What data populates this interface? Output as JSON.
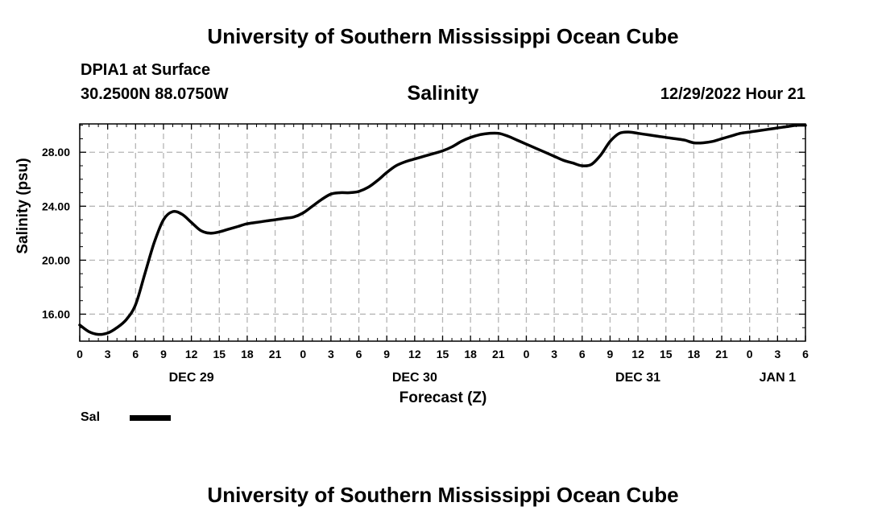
{
  "page": {
    "title_top": "University of Southern Mississippi Ocean Cube",
    "title_bottom": "University of Southern Mississippi Ocean Cube",
    "station": "DPIA1 at Surface",
    "coords": "30.2500N  88.0750W",
    "datetime": "12/29/2022 Hour 21"
  },
  "chart_data": {
    "type": "line",
    "title": "Salinity",
    "xlabel": "Forecast (Z)",
    "ylabel": "Salinity (psu)",
    "x_unit": "hours since 00Z Dec 29",
    "xlim": [
      0,
      78
    ],
    "ylim": [
      14.0,
      30.1
    ],
    "yticks": [
      16,
      20,
      24,
      28
    ],
    "ytick_labels": [
      "16.00",
      "20.00",
      "24.00",
      "28.00"
    ],
    "xtick_labels": [
      "0",
      "3",
      "6",
      "9",
      "12",
      "15",
      "18",
      "21",
      "0",
      "3",
      "6",
      "9",
      "12",
      "15",
      "18",
      "21",
      "0",
      "3",
      "6",
      "9",
      "12",
      "15",
      "18",
      "21",
      "0",
      "3",
      "6"
    ],
    "day_labels": [
      {
        "label": "DEC 29",
        "x": 12
      },
      {
        "label": "DEC 30",
        "x": 36
      },
      {
        "label": "DEC 31",
        "x": 60
      },
      {
        "label": "JAN 1",
        "x": 75
      }
    ],
    "grid": true,
    "series": [
      {
        "name": "Sal",
        "color": "#000000",
        "x": [
          0,
          1,
          2,
          3,
          4,
          5,
          6,
          7,
          8,
          9,
          10,
          11,
          12,
          13,
          14,
          15,
          16,
          17,
          18,
          19,
          20,
          21,
          22,
          23,
          24,
          25,
          26,
          27,
          28,
          29,
          30,
          31,
          32,
          33,
          34,
          35,
          36,
          37,
          38,
          39,
          40,
          41,
          42,
          43,
          44,
          45,
          46,
          47,
          48,
          49,
          50,
          51,
          52,
          53,
          54,
          55,
          56,
          57,
          58,
          59,
          60,
          61,
          62,
          63,
          64,
          65,
          66,
          67,
          68,
          69,
          70,
          71,
          72,
          73,
          74,
          75,
          76,
          77,
          78
        ],
        "y": [
          15.2,
          14.7,
          14.5,
          14.6,
          15.0,
          15.6,
          16.7,
          19.0,
          21.3,
          23.0,
          23.6,
          23.4,
          22.8,
          22.2,
          22.0,
          22.1,
          22.3,
          22.5,
          22.7,
          22.8,
          22.9,
          23.0,
          23.1,
          23.2,
          23.5,
          24.0,
          24.5,
          24.9,
          25.0,
          25.0,
          25.1,
          25.4,
          25.9,
          26.5,
          27.0,
          27.3,
          27.5,
          27.7,
          27.9,
          28.1,
          28.4,
          28.8,
          29.1,
          29.3,
          29.4,
          29.4,
          29.2,
          28.9,
          28.6,
          28.3,
          28.0,
          27.7,
          27.4,
          27.2,
          27.0,
          27.1,
          27.8,
          28.8,
          29.4,
          29.5,
          29.4,
          29.3,
          29.2,
          29.1,
          29.0,
          28.9,
          28.7,
          28.7,
          28.8,
          29.0,
          29.2,
          29.4,
          29.5,
          29.6,
          29.7,
          29.8,
          29.9,
          30.0,
          30.0
        ]
      }
    ],
    "legend": {
      "position": "bottom-left",
      "entries": [
        "Sal"
      ]
    }
  }
}
